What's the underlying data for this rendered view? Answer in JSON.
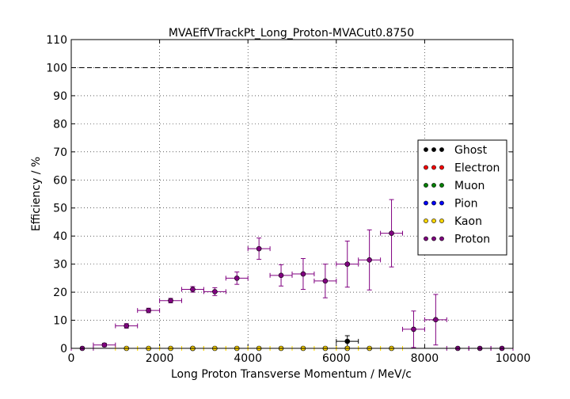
{
  "chart_data": {
    "type": "scatter",
    "title": "MVAEffVTrackPt_Long_Proton-MVACut0.8750",
    "xlabel": "Long Proton Transverse Momentum / MeV/c",
    "ylabel": "Efficiency / %",
    "xlim": [
      0,
      10000
    ],
    "ylim": [
      0,
      110
    ],
    "x_ticks": [
      "0",
      "2000",
      "4000",
      "6000",
      "8000",
      "10000"
    ],
    "y_ticks": [
      "0",
      "10",
      "20",
      "30",
      "40",
      "50",
      "60",
      "70",
      "80",
      "90",
      "100",
      "110"
    ],
    "grid": true,
    "legend_position": "right",
    "reference_line": 100,
    "x_bin_halfwidth": 250,
    "series": [
      {
        "name": "Ghost",
        "color": "#000000",
        "points": [
          [
            2750,
            0,
            0.3
          ],
          [
            6250,
            2.5,
            2.0
          ]
        ]
      },
      {
        "name": "Electron",
        "color": "#ff0000",
        "points": []
      },
      {
        "name": "Muon",
        "color": "#008000",
        "points": []
      },
      {
        "name": "Pion",
        "color": "#0000ff",
        "points": []
      },
      {
        "name": "Kaon",
        "color": "#ffd700",
        "points": [
          [
            1250,
            0,
            0
          ],
          [
            1750,
            0,
            0
          ],
          [
            2250,
            0,
            0
          ],
          [
            2750,
            0,
            0
          ],
          [
            3250,
            0,
            0
          ],
          [
            3750,
            0,
            0
          ],
          [
            4250,
            0,
            0
          ],
          [
            4750,
            0,
            0
          ],
          [
            5250,
            0,
            0
          ],
          [
            5750,
            0,
            0
          ],
          [
            6250,
            0,
            0
          ],
          [
            6750,
            0,
            0
          ],
          [
            7250,
            0,
            0
          ]
        ]
      },
      {
        "name": "Proton",
        "color": "#800080",
        "points": [
          [
            250,
            0,
            0
          ],
          [
            750,
            1.2,
            0.6
          ],
          [
            1250,
            8.0,
            0.8
          ],
          [
            1750,
            13.5,
            0.8
          ],
          [
            2250,
            17.0,
            0.8
          ],
          [
            2750,
            21.0,
            1.0
          ],
          [
            3250,
            20.2,
            1.4
          ],
          [
            3750,
            25.0,
            2.2
          ],
          [
            4250,
            35.5,
            3.8
          ],
          [
            4750,
            26.0,
            3.8
          ],
          [
            5250,
            26.5,
            5.5
          ],
          [
            5750,
            24.0,
            6.0
          ],
          [
            6250,
            30.0,
            8.2
          ],
          [
            6750,
            31.5,
            10.7
          ],
          [
            7250,
            41.0,
            12.0
          ],
          [
            7750,
            6.8,
            6.5
          ],
          [
            8250,
            10.2,
            9.0
          ],
          [
            8750,
            0,
            0
          ],
          [
            9250,
            0,
            0
          ],
          [
            9750,
            0,
            0
          ]
        ]
      }
    ]
  }
}
